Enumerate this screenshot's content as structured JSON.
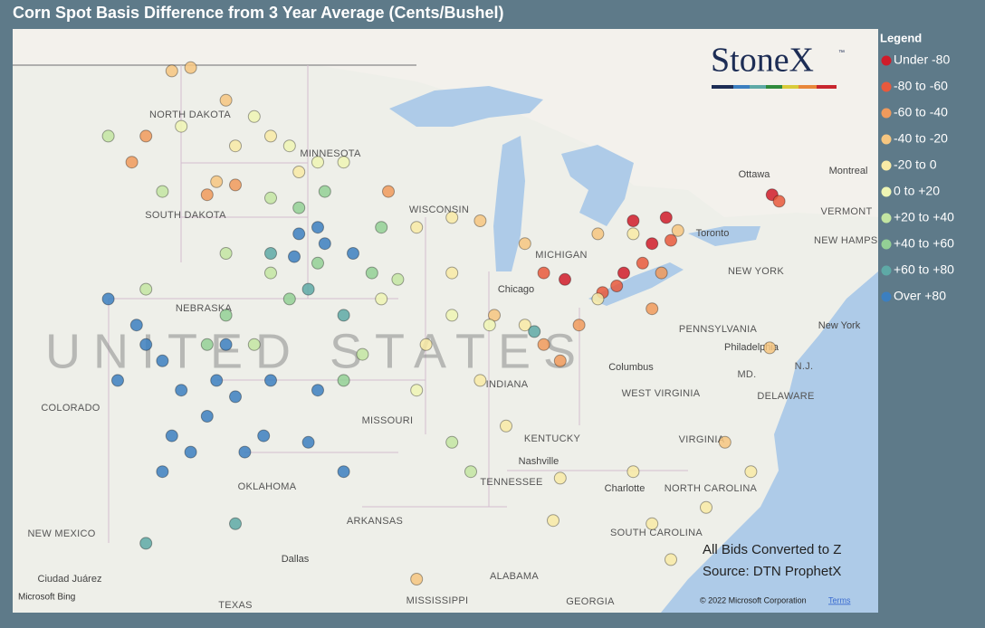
{
  "title": "Corn Spot Basis Difference from 3 Year Average (Cents/Bushel)",
  "logo": {
    "name": "StoneX",
    "mark": "™"
  },
  "legend": {
    "title": "Legend",
    "items": [
      {
        "label": "Under -80",
        "color": "#d01c2a"
      },
      {
        "label": "-80 to -60",
        "color": "#e8593c"
      },
      {
        "label": "-60 to -40",
        "color": "#f09a5c"
      },
      {
        "label": "-40 to -20",
        "color": "#f6c680"
      },
      {
        "label": "-20 to 0",
        "color": "#f8eaa6"
      },
      {
        "label": "0 to +20",
        "color": "#eef5b4"
      },
      {
        "label": "+20 to +40",
        "color": "#c3e5a2"
      },
      {
        "label": "+40 to +60",
        "color": "#93d095"
      },
      {
        "label": "+60 to +80",
        "color": "#5ea9a6"
      },
      {
        "label": "Over +80",
        "color": "#3c7fc0"
      }
    ]
  },
  "places": [
    "NORTH DAKOTA",
    "MINNESOTA",
    "SOUTH DAKOTA",
    "WISCONSIN",
    "NEBRASKA",
    "COLORADO",
    "MISSOURI",
    "KENTUCKY",
    "TENNESSEE",
    "Nashville",
    "OKLAHOMA",
    "ARKANSAS",
    "NEW MEXICO",
    "Dallas",
    "Ciudad Juárez",
    "TEXAS",
    "MISSISSIPPI",
    "ALABAMA",
    "GEORGIA",
    "SOUTH CAROLINA",
    "Charlotte",
    "NORTH CAROLINA",
    "VIRGINIA",
    "WEST VIRGINIA",
    "Columbus",
    "PENNSYLVANIA",
    "Philadelphia",
    "NEW YORK",
    "New York",
    "Toronto",
    "Ottawa",
    "Montreal",
    "VERMONT",
    "NEW HAMPSHIRE",
    "MD.",
    "N.J.",
    "DELAWARE",
    "Chicago",
    "MICHIGAN",
    "INDIANA"
  ],
  "country_label": "UNITED STATES",
  "notes": [
    "All Bids Converted to Z",
    "Source: DTN ProphetX"
  ],
  "attribution": {
    "provider": "Microsoft Bing",
    "copyright": "© 2022 Microsoft Corporation",
    "terms": "Terms"
  },
  "points": [
    {
      "lon": -82.6,
      "lat": 44.0,
      "bin": 0
    },
    {
      "lon": -81.2,
      "lat": 44.1,
      "bin": 0
    },
    {
      "lon": -81.8,
      "lat": 43.3,
      "bin": 0
    },
    {
      "lon": -81.0,
      "lat": 43.4,
      "bin": 1
    },
    {
      "lon": -82.2,
      "lat": 42.7,
      "bin": 1
    },
    {
      "lon": -83.0,
      "lat": 42.4,
      "bin": 0
    },
    {
      "lon": -83.3,
      "lat": 42.0,
      "bin": 1
    },
    {
      "lon": -83.9,
      "lat": 41.8,
      "bin": 1
    },
    {
      "lon": -86.4,
      "lat": 42.4,
      "bin": 1
    },
    {
      "lon": -85.5,
      "lat": 42.2,
      "bin": 0
    },
    {
      "lon": -76.7,
      "lat": 44.8,
      "bin": 0
    },
    {
      "lon": -76.4,
      "lat": 44.6,
      "bin": 1
    },
    {
      "lon": -81.4,
      "lat": 42.4,
      "bin": 2
    },
    {
      "lon": -81.8,
      "lat": 41.3,
      "bin": 2
    },
    {
      "lon": -85.7,
      "lat": 39.7,
      "bin": 2
    },
    {
      "lon": -84.9,
      "lat": 40.8,
      "bin": 2
    },
    {
      "lon": -86.4,
      "lat": 40.2,
      "bin": 2
    },
    {
      "lon": -99.5,
      "lat": 45.1,
      "bin": 2
    },
    {
      "lon": -100.7,
      "lat": 44.8,
      "bin": 2
    },
    {
      "lon": -93.0,
      "lat": 44.9,
      "bin": 2
    },
    {
      "lon": -103.9,
      "lat": 45.8,
      "bin": 2
    },
    {
      "lon": -103.3,
      "lat": 46.6,
      "bin": 2
    },
    {
      "lon": -102.2,
      "lat": 48.6,
      "bin": 3
    },
    {
      "lon": -101.4,
      "lat": 48.7,
      "bin": 3
    },
    {
      "lon": -99.9,
      "lat": 47.7,
      "bin": 3
    },
    {
      "lon": -89.1,
      "lat": 44.0,
      "bin": 3
    },
    {
      "lon": -88.5,
      "lat": 41.1,
      "bin": 3
    },
    {
      "lon": -87.2,
      "lat": 43.3,
      "bin": 3
    },
    {
      "lon": -84.1,
      "lat": 43.6,
      "bin": 3
    },
    {
      "lon": -80.7,
      "lat": 43.7,
      "bin": 3
    },
    {
      "lon": -78.7,
      "lat": 37.2,
      "bin": 3
    },
    {
      "lon": -91.8,
      "lat": 33.0,
      "bin": 3
    },
    {
      "lon": -76.8,
      "lat": 40.1,
      "bin": 3
    },
    {
      "lon": -100.3,
      "lat": 45.2,
      "bin": 3
    },
    {
      "lon": -98.0,
      "lat": 46.6,
      "bin": 4
    },
    {
      "lon": -96.8,
      "lat": 45.5,
      "bin": 4
    },
    {
      "lon": -99.5,
      "lat": 46.3,
      "bin": 4
    },
    {
      "lon": -90.3,
      "lat": 44.1,
      "bin": 4
    },
    {
      "lon": -91.4,
      "lat": 40.2,
      "bin": 4
    },
    {
      "lon": -89.1,
      "lat": 39.1,
      "bin": 4
    },
    {
      "lon": -87.2,
      "lat": 40.8,
      "bin": 4
    },
    {
      "lon": -84.1,
      "lat": 41.6,
      "bin": 4
    },
    {
      "lon": -82.6,
      "lat": 43.6,
      "bin": 4
    },
    {
      "lon": -90.3,
      "lat": 42.4,
      "bin": 4
    },
    {
      "lon": -85.7,
      "lat": 36.1,
      "bin": 4
    },
    {
      "lon": -82.6,
      "lat": 36.3,
      "bin": 4
    },
    {
      "lon": -79.5,
      "lat": 35.2,
      "bin": 4
    },
    {
      "lon": -77.6,
      "lat": 36.3,
      "bin": 4
    },
    {
      "lon": -81.8,
      "lat": 34.7,
      "bin": 4
    },
    {
      "lon": -81.0,
      "lat": 33.6,
      "bin": 4
    },
    {
      "lon": -86.0,
      "lat": 34.8,
      "bin": 4
    },
    {
      "lon": -88.0,
      "lat": 37.7,
      "bin": 4
    },
    {
      "lon": -91.8,
      "lat": 43.8,
      "bin": 4
    },
    {
      "lon": -98.7,
      "lat": 47.2,
      "bin": 5
    },
    {
      "lon": -97.2,
      "lat": 46.3,
      "bin": 5
    },
    {
      "lon": -96.0,
      "lat": 45.8,
      "bin": 5
    },
    {
      "lon": -93.3,
      "lat": 41.6,
      "bin": 5
    },
    {
      "lon": -90.3,
      "lat": 41.1,
      "bin": 5
    },
    {
      "lon": -91.8,
      "lat": 38.8,
      "bin": 5
    },
    {
      "lon": -88.7,
      "lat": 40.8,
      "bin": 5
    },
    {
      "lon": -101.8,
      "lat": 46.9,
      "bin": 5
    },
    {
      "lon": -94.9,
      "lat": 45.8,
      "bin": 5
    },
    {
      "lon": -98.0,
      "lat": 44.7,
      "bin": 6
    },
    {
      "lon": -99.9,
      "lat": 43.0,
      "bin": 6
    },
    {
      "lon": -98.7,
      "lat": 40.2,
      "bin": 6
    },
    {
      "lon": -94.1,
      "lat": 39.9,
      "bin": 6
    },
    {
      "lon": -92.6,
      "lat": 42.2,
      "bin": 6
    },
    {
      "lon": -90.3,
      "lat": 37.2,
      "bin": 6
    },
    {
      "lon": -89.5,
      "lat": 36.3,
      "bin": 6
    },
    {
      "lon": -103.3,
      "lat": 41.9,
      "bin": 6
    },
    {
      "lon": -104.9,
      "lat": 46.6,
      "bin": 6
    },
    {
      "lon": -102.6,
      "lat": 44.9,
      "bin": 6
    },
    {
      "lon": -98.0,
      "lat": 42.4,
      "bin": 6
    },
    {
      "lon": -96.8,
      "lat": 44.4,
      "bin": 7
    },
    {
      "lon": -95.7,
      "lat": 44.9,
      "bin": 7
    },
    {
      "lon": -93.3,
      "lat": 43.8,
      "bin": 7
    },
    {
      "lon": -97.2,
      "lat": 41.6,
      "bin": 7
    },
    {
      "lon": -94.9,
      "lat": 39.1,
      "bin": 7
    },
    {
      "lon": -93.7,
      "lat": 42.4,
      "bin": 7
    },
    {
      "lon": -96.0,
      "lat": 42.7,
      "bin": 7
    },
    {
      "lon": -99.9,
      "lat": 41.1,
      "bin": 7
    },
    {
      "lon": -100.7,
      "lat": 40.2,
      "bin": 7
    },
    {
      "lon": -96.4,
      "lat": 41.9,
      "bin": 8
    },
    {
      "lon": -94.9,
      "lat": 41.1,
      "bin": 8
    },
    {
      "lon": -98.0,
      "lat": 43.0,
      "bin": 8
    },
    {
      "lon": -99.5,
      "lat": 34.7,
      "bin": 8
    },
    {
      "lon": -103.3,
      "lat": 34.1,
      "bin": 8
    },
    {
      "lon": -86.8,
      "lat": 40.6,
      "bin": 8
    },
    {
      "lon": -96.8,
      "lat": 43.6,
      "bin": 9
    },
    {
      "lon": -95.7,
      "lat": 43.3,
      "bin": 9
    },
    {
      "lon": -94.5,
      "lat": 43.0,
      "bin": 9
    },
    {
      "lon": -97.0,
      "lat": 42.9,
      "bin": 9
    },
    {
      "lon": -96.0,
      "lat": 43.8,
      "bin": 9
    },
    {
      "lon": -104.9,
      "lat": 41.6,
      "bin": 9
    },
    {
      "lon": -103.7,
      "lat": 40.8,
      "bin": 9
    },
    {
      "lon": -102.6,
      "lat": 39.7,
      "bin": 9
    },
    {
      "lon": -101.8,
      "lat": 38.8,
      "bin": 9
    },
    {
      "lon": -100.7,
      "lat": 38.0,
      "bin": 9
    },
    {
      "lon": -99.5,
      "lat": 38.6,
      "bin": 9
    },
    {
      "lon": -98.3,
      "lat": 37.4,
      "bin": 9
    },
    {
      "lon": -99.1,
      "lat": 36.9,
      "bin": 9
    },
    {
      "lon": -98.0,
      "lat": 39.1,
      "bin": 9
    },
    {
      "lon": -100.3,
      "lat": 39.1,
      "bin": 9
    },
    {
      "lon": -102.2,
      "lat": 37.4,
      "bin": 9
    },
    {
      "lon": -102.6,
      "lat": 36.3,
      "bin": 9
    },
    {
      "lon": -101.4,
      "lat": 36.9,
      "bin": 9
    },
    {
      "lon": -104.5,
      "lat": 39.1,
      "bin": 9
    },
    {
      "lon": -96.4,
      "lat": 37.2,
      "bin": 9
    },
    {
      "lon": -94.9,
      "lat": 36.3,
      "bin": 9
    },
    {
      "lon": -96.0,
      "lat": 38.8,
      "bin": 9
    },
    {
      "lon": -103.3,
      "lat": 40.2,
      "bin": 9
    },
    {
      "lon": -99.9,
      "lat": 40.2,
      "bin": 9
    }
  ]
}
